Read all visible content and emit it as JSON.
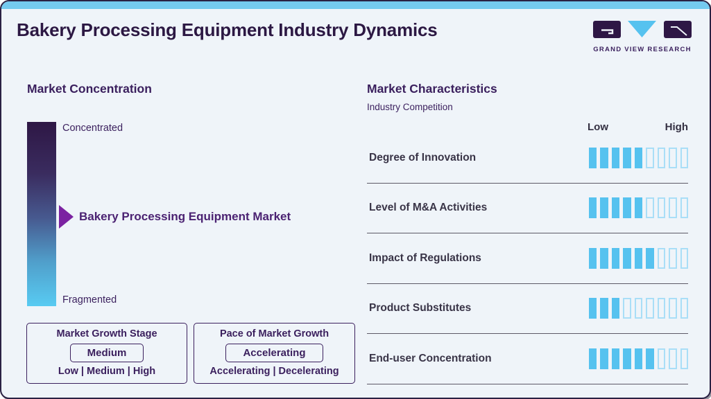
{
  "header": {
    "title": "Bakery Processing Equipment Industry Dynamics",
    "logo": {
      "brand": "GRAND VIEW RESEARCH"
    }
  },
  "market_concentration": {
    "heading": "Market Concentration",
    "scale_top": "Concentrated",
    "scale_bottom": "Fragmented",
    "marker": "Bakery Processing Equipment Market",
    "growth_stage": {
      "title": "Market Growth Stage",
      "value": "Medium",
      "options": "Low | Medium | High"
    },
    "growth_pace": {
      "title": "Pace of Market Growth",
      "value": "Accelerating",
      "options": "Accelerating | Decelerating"
    }
  },
  "market_characteristics": {
    "heading": "Market Characteristics",
    "subheading": "Industry Competition",
    "scale": {
      "low": "Low",
      "high": "High"
    },
    "rows": [
      {
        "label": "Degree of Innovation",
        "filled": 5,
        "total": 9
      },
      {
        "label": "Level of M&A Activities",
        "filled": 5,
        "total": 9
      },
      {
        "label": "Impact of Regulations",
        "filled": 6,
        "total": 9
      },
      {
        "label": "Product Substitutes",
        "filled": 3,
        "total": 9
      },
      {
        "label": "End-user Concentration",
        "filled": 6,
        "total": 9
      }
    ]
  },
  "chart_data": {
    "type": "bar",
    "title": "Bakery Processing Equipment Industry Dynamics",
    "subtitle": "Industry Competition",
    "categories": [
      "Degree of Innovation",
      "Level of M&A Activities",
      "Impact of Regulations",
      "Product Substitutes",
      "End-user Concentration"
    ],
    "values": [
      5,
      5,
      6,
      3,
      6
    ],
    "value_scale": {
      "segments": 9,
      "min_label": "Low",
      "max_label": "High"
    },
    "annotations": {
      "market_concentration_axis": [
        "Concentrated",
        "Fragmented"
      ],
      "market_concentration_marker": "Bakery Processing Equipment Market",
      "market_growth_stage": "Medium",
      "market_growth_stage_options": "Low | Medium | High",
      "pace_of_market_growth": "Accelerating",
      "pace_of_market_growth_options": "Accelerating | Decelerating"
    }
  },
  "colors": {
    "accent_blue": "#56C2EF",
    "bar_outline": "#A9DEF7",
    "deep_purple": "#3A1F5D",
    "title_purple": "#2C1843",
    "arrow_purple": "#7B22A1",
    "gradient_top": "#2E1745",
    "gradient_bottom": "#58CBF2",
    "top_strip": "#74CAEF",
    "card_background": "#EFF4F9"
  }
}
